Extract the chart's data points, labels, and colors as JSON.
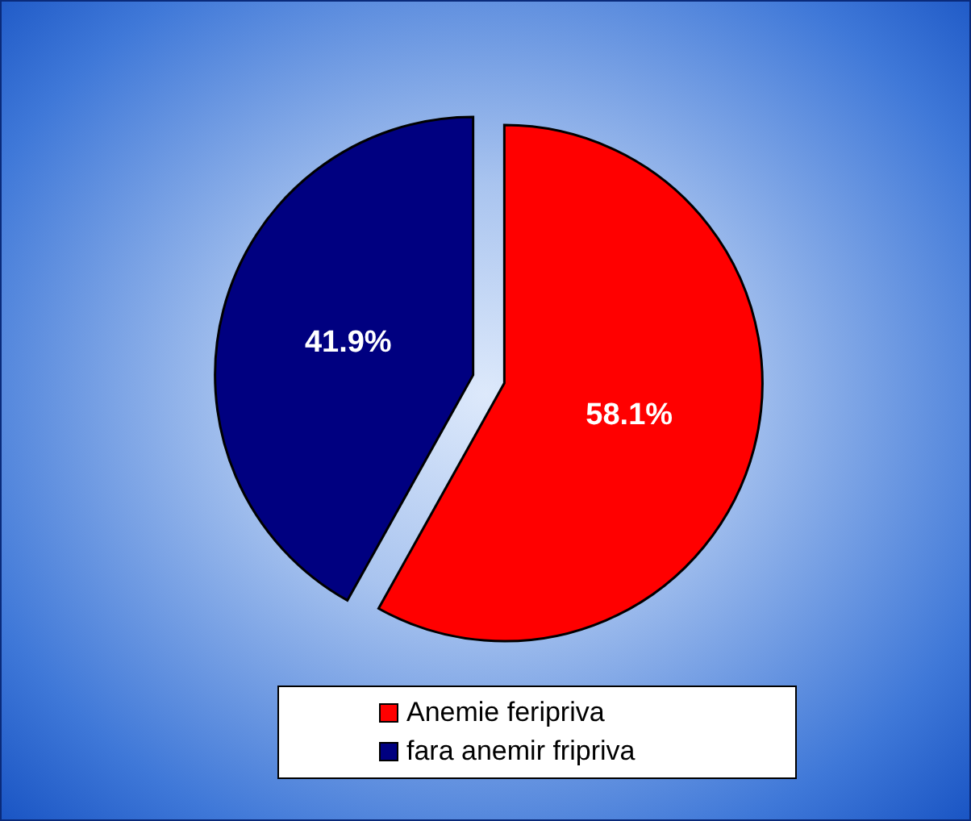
{
  "chart_data": {
    "type": "pie",
    "categories": [
      "Anemie feripriva",
      "fara anemir fripriva"
    ],
    "values": [
      58.1,
      41.9
    ],
    "colors": [
      "#ff0000",
      "#000080"
    ],
    "value_labels": [
      "58.1%",
      "41.9%"
    ],
    "legend": "bottom"
  }
}
